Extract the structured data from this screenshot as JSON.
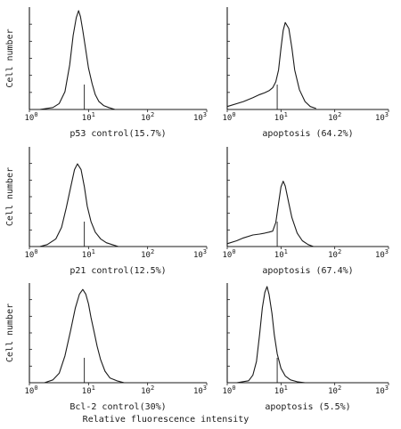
{
  "figure": {
    "ylabel": "Cell number",
    "xlabel": "Relative fluorescence intensity"
  },
  "chart_data": [
    {
      "type": "line",
      "title": "p53 control(15.7%)",
      "ylabel": "Cell number",
      "xscale": "log",
      "xlim": [
        1,
        1000
      ],
      "xticks": [
        "10^0",
        "10^1",
        "10^2",
        "10^3"
      ],
      "marker_x": 8.5,
      "series": [
        {
          "x": [
            1.5,
            2.5,
            3.2,
            4,
            4.8,
            5.5,
            6.2,
            6.8,
            7.3,
            8,
            9,
            10,
            11.5,
            13,
            15,
            18,
            22,
            28
          ],
          "y": [
            0,
            2,
            6,
            18,
            45,
            75,
            93,
            100,
            94,
            80,
            60,
            42,
            26,
            15,
            8,
            4,
            2,
            0
          ]
        }
      ]
    },
    {
      "type": "line",
      "title": "apoptosis (64.2%)",
      "xscale": "log",
      "xlim": [
        1,
        1000
      ],
      "xticks": [
        "10^0",
        "10^1",
        "10^2",
        "10^3"
      ],
      "marker_x": 8.5,
      "series": [
        {
          "x": [
            1,
            2,
            3,
            4,
            5,
            6,
            7,
            8,
            9,
            10,
            11,
            12,
            14,
            16,
            18,
            22,
            28,
            35,
            45
          ],
          "y": [
            3,
            8,
            12,
            15,
            17,
            19,
            22,
            28,
            40,
            62,
            80,
            88,
            82,
            62,
            40,
            20,
            8,
            3,
            1
          ]
        }
      ]
    },
    {
      "type": "line",
      "title": "p21 control(12.5%)",
      "ylabel": "Cell number",
      "xscale": "log",
      "xlim": [
        1,
        1000
      ],
      "xticks": [
        "10^0",
        "10^1",
        "10^2",
        "10^3"
      ],
      "marker_x": 8.5,
      "series": [
        {
          "x": [
            1.5,
            2,
            2.8,
            3.5,
            4.2,
            5,
            5.8,
            6.5,
            7.5,
            8.5,
            9.5,
            11,
            13,
            16,
            20,
            25,
            32
          ],
          "y": [
            0,
            2,
            8,
            20,
            40,
            62,
            80,
            86,
            80,
            62,
            42,
            26,
            15,
            8,
            4,
            2,
            0
          ]
        }
      ]
    },
    {
      "type": "line",
      "title": "apoptosis (67.4%)",
      "xscale": "log",
      "xlim": [
        1,
        1000
      ],
      "xticks": [
        "10^0",
        "10^1",
        "10^2",
        "10^3"
      ],
      "marker_x": 8.5,
      "series": [
        {
          "x": [
            1,
            1.5,
            2,
            3,
            4,
            5,
            6,
            7,
            8,
            9,
            10,
            11,
            12,
            14,
            16,
            20,
            25,
            32,
            40
          ],
          "y": [
            3,
            6,
            9,
            12,
            13,
            14,
            15,
            16,
            25,
            45,
            62,
            68,
            63,
            45,
            30,
            14,
            6,
            2,
            0
          ]
        }
      ]
    },
    {
      "type": "line",
      "title": "Bcl-2 control(30%)",
      "ylabel": "Cell number",
      "xscale": "log",
      "xlim": [
        1,
        1000
      ],
      "xticks": [
        "10^0",
        "10^1",
        "10^2",
        "10^3"
      ],
      "marker_x": 8.5,
      "series": [
        {
          "x": [
            1.8,
            2.5,
            3.2,
            4,
            5,
            6,
            7,
            8,
            9,
            10,
            11,
            12.5,
            14,
            16,
            19,
            23,
            30,
            40
          ],
          "y": [
            0,
            3,
            10,
            28,
            55,
            78,
            92,
            97,
            92,
            82,
            68,
            52,
            38,
            24,
            12,
            5,
            2,
            0
          ]
        }
      ]
    },
    {
      "type": "line",
      "title": "apoptosis (5.5%)",
      "xscale": "log",
      "xlim": [
        1,
        1000
      ],
      "xticks": [
        "10^0",
        "10^1",
        "10^2",
        "10^3"
      ],
      "marker_x": 8.5,
      "series": [
        {
          "x": [
            1.5,
            2.5,
            3,
            3.5,
            4,
            4.5,
            5,
            5.5,
            6,
            6.8,
            7.5,
            8.5,
            10,
            12,
            15,
            20,
            28
          ],
          "y": [
            0,
            2,
            8,
            22,
            50,
            78,
            94,
            100,
            92,
            72,
            50,
            30,
            15,
            7,
            3,
            1,
            0
          ]
        }
      ]
    }
  ]
}
